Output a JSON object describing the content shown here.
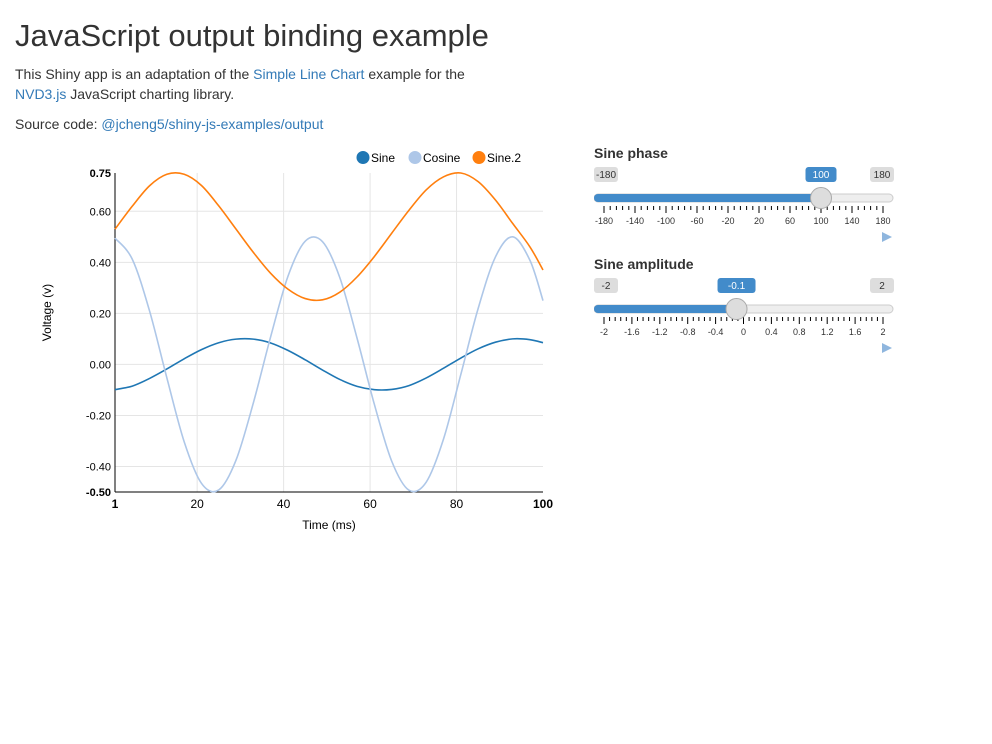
{
  "header": {
    "title": "JavaScript output binding example",
    "intro_part1": "This Shiny app is an adaptation of the ",
    "intro_link1": "Simple Line Chart",
    "intro_part2": " example for the ",
    "intro_link2": "NVD3.js",
    "intro_part3": " JavaScript charting library.",
    "source_prefix": "Source code: ",
    "source_link": "@jcheng5/shiny-js-examples/output"
  },
  "chart_data": {
    "type": "line",
    "title": "",
    "xlabel": "Time (ms)",
    "ylabel": "Voltage (v)",
    "xlim": [
      1,
      100
    ],
    "ylim": [
      -0.5,
      0.75
    ],
    "x_ticks": [
      1,
      20,
      40,
      60,
      80,
      100
    ],
    "x_tick_labels": [
      "1",
      "20",
      "40",
      "60",
      "80",
      "100"
    ],
    "y_ticks": [
      -0.5,
      -0.4,
      -0.2,
      0.0,
      0.2,
      0.4,
      0.6,
      0.75
    ],
    "y_tick_labels": [
      "-0.50",
      "-0.40",
      "-0.20",
      "0.00",
      "0.20",
      "0.40",
      "0.60",
      "0.75"
    ],
    "grid": true,
    "legend_position": "top-right",
    "series": [
      {
        "name": "Sine",
        "color": "#1f77b4",
        "x": [
          1,
          5,
          9,
          13,
          17,
          21,
          25,
          29,
          33,
          37,
          41,
          45,
          49,
          53,
          57,
          61,
          65,
          69,
          73,
          77,
          81,
          85,
          89,
          93,
          97,
          100
        ],
        "values": [
          -0.099,
          -0.085,
          -0.055,
          -0.018,
          0.022,
          0.058,
          0.085,
          0.099,
          0.099,
          0.084,
          0.055,
          0.018,
          -0.022,
          -0.059,
          -0.086,
          -0.099,
          -0.098,
          -0.083,
          -0.053,
          -0.015,
          0.025,
          0.061,
          0.087,
          0.1,
          0.097,
          0.085
        ]
      },
      {
        "name": "Cosine",
        "color": "#aec7e8",
        "x": [
          1,
          5,
          9,
          13,
          17,
          21,
          25,
          29,
          33,
          37,
          41,
          45,
          49,
          53,
          57,
          61,
          65,
          69,
          73,
          77,
          81,
          85,
          89,
          93,
          97,
          100
        ],
        "values": [
          0.495,
          0.412,
          0.209,
          -0.053,
          -0.303,
          -0.466,
          -0.492,
          -0.375,
          -0.151,
          0.108,
          0.345,
          0.483,
          0.481,
          0.34,
          0.102,
          -0.157,
          -0.379,
          -0.493,
          -0.461,
          -0.292,
          -0.039,
          0.219,
          0.421,
          0.5,
          0.407,
          0.25
        ]
      },
      {
        "name": "Sine.2",
        "color": "#ff7f0e",
        "x": [
          1,
          5,
          9,
          13,
          17,
          21,
          25,
          29,
          33,
          37,
          41,
          45,
          49,
          53,
          57,
          61,
          65,
          69,
          73,
          77,
          81,
          85,
          89,
          93,
          97,
          100
        ],
        "values": [
          0.53,
          0.62,
          0.7,
          0.745,
          0.745,
          0.701,
          0.621,
          0.53,
          0.439,
          0.357,
          0.295,
          0.258,
          0.253,
          0.283,
          0.343,
          0.423,
          0.514,
          0.604,
          0.684,
          0.735,
          0.75,
          0.716,
          0.644,
          0.552,
          0.46,
          0.37
        ]
      }
    ]
  },
  "controls": {
    "phase": {
      "label": "Sine phase",
      "min": -180,
      "max": 180,
      "value": 100,
      "min_label": "-180",
      "max_label": "180",
      "value_label": "100",
      "tick_labels": [
        "-180",
        "-140",
        "-100",
        "-60",
        "-20",
        "20",
        "60",
        "100",
        "140",
        "180"
      ]
    },
    "amplitude": {
      "label": "Sine amplitude",
      "min": -2,
      "max": 2,
      "value": -0.1,
      "min_label": "-2",
      "max_label": "2",
      "value_label": "-0.1",
      "tick_labels": [
        "-2",
        "-1.6",
        "-1.2",
        "-0.8",
        "-0.4",
        "0",
        "0.4",
        "0.8",
        "1.2",
        "1.6",
        "2"
      ]
    }
  },
  "colors": {
    "link": "#337ab7",
    "slider_fill": "#428bca",
    "slider_track": "#dddddd"
  }
}
